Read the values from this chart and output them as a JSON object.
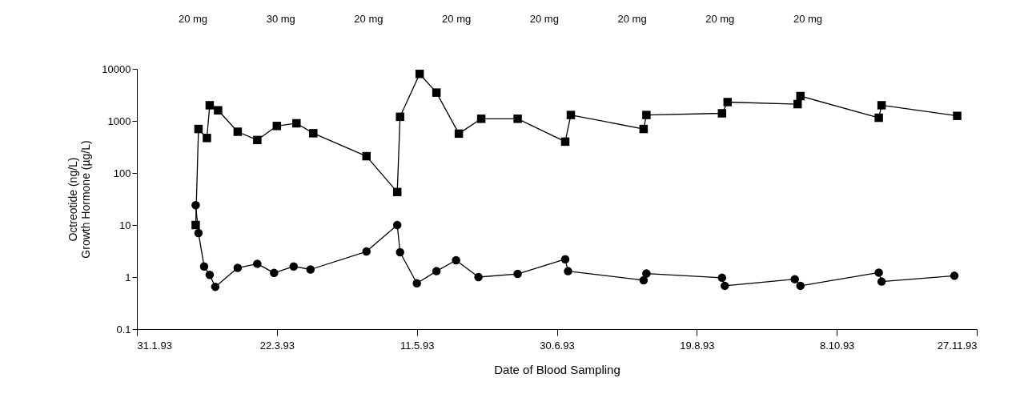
{
  "chart_data": {
    "type": "line",
    "xlabel": "Date of Blood Sampling",
    "ylabel": "Octreotide (ng/L)\nGrowth Hormone (µg/L)",
    "log": "y",
    "grid": false,
    "xlim": [
      "1993-01-31",
      "1993-11-27"
    ],
    "xticks": [
      {
        "value": "1993-01-31",
        "label": "31.1.93"
      },
      {
        "value": "1993-03-22",
        "label": "22.3.93"
      },
      {
        "value": "1993-05-11",
        "label": "11.5.93"
      },
      {
        "value": "1993-06-30",
        "label": "30.6.93"
      },
      {
        "value": "1993-08-19",
        "label": "19.8.93"
      },
      {
        "value": "1993-10-08",
        "label": "8.10.93"
      },
      {
        "value": "1993-11-27",
        "label": "27.11.93"
      }
    ],
    "ylim": [
      0.1,
      10000
    ],
    "yticks": [
      0.1,
      1,
      10,
      100,
      1000,
      10000
    ],
    "annotations": [
      "20 mg",
      "30 mg",
      "20 mg",
      "20 mg",
      "20 mg",
      "20 mg",
      "20 mg",
      "20 mg"
    ],
    "series": [
      {
        "color": "#000000",
        "marker": "square",
        "x": [
          "1993-02-21",
          "1993-02-22",
          "1993-02-25",
          "1993-02-26",
          "1993-03-01",
          "1993-03-08",
          "1993-03-15",
          "1993-03-22",
          "1993-03-29",
          "1993-04-04",
          "1993-04-23",
          "1993-05-04",
          "1993-05-05",
          "1993-05-12",
          "1993-05-18",
          "1993-05-26",
          "1993-06-03",
          "1993-06-16",
          "1993-07-03",
          "1993-07-05",
          "1993-07-31",
          "1993-08-01",
          "1993-08-28",
          "1993-08-30",
          "1993-09-24",
          "1993-09-25",
          "1993-10-23",
          "1993-10-24",
          "1993-11-20"
        ],
        "values": [
          10,
          700,
          470,
          2000,
          1600,
          620,
          430,
          800,
          900,
          580,
          210,
          43,
          1200,
          8000,
          3500,
          570,
          1100,
          1100,
          400,
          1300,
          700,
          1300,
          1400,
          2300,
          2100,
          3000,
          1150,
          2000,
          1250
        ]
      },
      {
        "color": "#000000",
        "marker": "circle",
        "x": [
          "1993-02-21",
          "1993-02-22",
          "1993-02-24",
          "1993-02-26",
          "1993-02-28",
          "1993-03-08",
          "1993-03-15",
          "1993-03-21",
          "1993-03-28",
          "1993-04-03",
          "1993-04-23",
          "1993-05-04",
          "1993-05-05",
          "1993-05-11",
          "1993-05-18",
          "1993-05-25",
          "1993-06-02",
          "1993-06-16",
          "1993-07-03",
          "1993-07-04",
          "1993-07-31",
          "1993-08-01",
          "1993-08-28",
          "1993-08-29",
          "1993-09-23",
          "1993-09-25",
          "1993-10-23",
          "1993-10-24",
          "1993-11-19"
        ],
        "values": [
          24,
          7,
          1.6,
          1.1,
          0.65,
          1.5,
          1.8,
          1.2,
          1.6,
          1.4,
          3.1,
          10,
          3.0,
          0.76,
          1.3,
          2.1,
          1.0,
          1.15,
          2.2,
          1.3,
          0.87,
          1.17,
          0.97,
          0.68,
          0.91,
          0.68,
          1.22,
          0.82,
          1.06
        ]
      }
    ]
  }
}
